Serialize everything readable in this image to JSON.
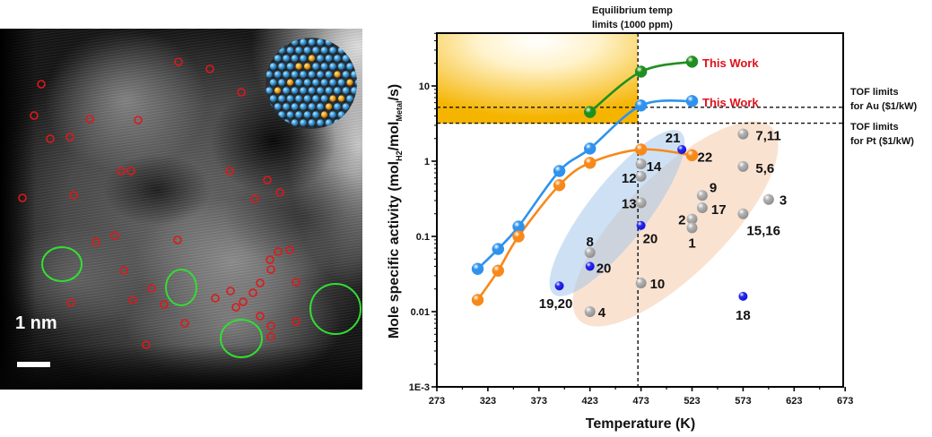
{
  "left_panel": {
    "scale_bar_label": "1 nm",
    "marker_colors": {
      "single_atom_circle": "#e01818",
      "cluster_ellipse": "#33dd33"
    },
    "model_colors": {
      "support": "#3aa0e0",
      "metal": "#f0a820",
      "carbon": "#222222"
    }
  },
  "chart_data": {
    "type": "scatter",
    "xlabel": "Temperature (K)",
    "ylabel_parts": [
      "Mole specific activity (mol",
      "H2",
      "/mol",
      "Metal",
      "/s)"
    ],
    "xlim": [
      273,
      673
    ],
    "ylim": [
      0.001,
      50
    ],
    "yscale": "log",
    "grid": false,
    "xticks": [
      "273",
      "323",
      "373",
      "423",
      "473",
      "523",
      "573",
      "623",
      "673"
    ],
    "yticks": [
      {
        "value": 0.001,
        "label": "1E-3"
      },
      {
        "value": 0.01,
        "label": "0.01"
      },
      {
        "value": 0.1,
        "label": "0.1"
      },
      {
        "value": 1,
        "label": "1"
      },
      {
        "value": 10,
        "label": "10"
      }
    ],
    "series": [
      {
        "name": "This Work",
        "color": "#2e92ee",
        "points": [
          [
            313,
            0.037
          ],
          [
            333,
            0.068
          ],
          [
            353,
            0.135
          ],
          [
            393,
            0.74
          ],
          [
            423,
            1.47
          ],
          [
            473,
            5.5
          ],
          [
            523,
            6.3
          ]
        ]
      },
      {
        "name": "This Work",
        "color": "#1f8f1f",
        "points": [
          [
            423,
            4.5
          ],
          [
            473,
            15.5
          ],
          [
            523,
            21
          ]
        ]
      },
      {
        "color": "#f7891a",
        "points": [
          [
            313,
            0.0143
          ],
          [
            333,
            0.035
          ],
          [
            353,
            0.1
          ],
          [
            393,
            0.48
          ],
          [
            423,
            0.95
          ],
          [
            473,
            1.43
          ],
          [
            523,
            1.2
          ]
        ]
      }
    ],
    "literature_points": [
      {
        "x": 573,
        "y": 2.3,
        "label": "7,11",
        "kind": "gray"
      },
      {
        "x": 573,
        "y": 0.85,
        "label": "5,6",
        "kind": "gray"
      },
      {
        "x": 598,
        "y": 0.31,
        "label": "3",
        "kind": "gray"
      },
      {
        "x": 533,
        "y": 0.35,
        "label": "9",
        "kind": "gray"
      },
      {
        "x": 533,
        "y": 0.24,
        "label": "17",
        "kind": "gray"
      },
      {
        "x": 523,
        "y": 0.17,
        "label": "2",
        "kind": "gray"
      },
      {
        "x": 523,
        "y": 0.13,
        "label": "1",
        "kind": "gray"
      },
      {
        "x": 573,
        "y": 0.2,
        "label": "15,16",
        "kind": "gray"
      },
      {
        "x": 473,
        "y": 0.92,
        "label": "14",
        "kind": "gray"
      },
      {
        "x": 473,
        "y": 0.63,
        "label": "12",
        "kind": "gray"
      },
      {
        "x": 473,
        "y": 0.28,
        "label": "13",
        "kind": "gray"
      },
      {
        "x": 473,
        "y": 0.024,
        "label": "10",
        "kind": "gray"
      },
      {
        "x": 423,
        "y": 0.061,
        "label": "8",
        "kind": "gray"
      },
      {
        "x": 423,
        "y": 0.01,
        "label": "4",
        "kind": "gray"
      },
      {
        "x": 513,
        "y": 1.43,
        "label": "21",
        "kind": "blue"
      },
      {
        "x": 473,
        "y": 0.14,
        "label": "20",
        "kind": "blue"
      },
      {
        "x": 423,
        "y": 0.04,
        "label": "20",
        "kind": "blue"
      },
      {
        "x": 393,
        "y": 0.022,
        "label": "19,20",
        "kind": "blue"
      },
      {
        "x": 573,
        "y": 0.016,
        "label": "18",
        "kind": "blue"
      }
    ],
    "annotations": [
      {
        "text": "22",
        "x": 523,
        "y": 1.2
      }
    ],
    "reference_lines": {
      "equilibrium": {
        "x": 470,
        "label_lines": [
          "Equilibrium temp",
          "limits (1000 ppm)"
        ]
      },
      "tof_au": {
        "y": 5.2,
        "label_lines": [
          "TOF limits",
          "for Au ($1/kW)"
        ]
      },
      "tof_pt": {
        "y": 3.2,
        "label_lines": [
          "TOF limits",
          "for Pt ($1/kW)"
        ]
      }
    },
    "colors": {
      "target_region": "#f5b400",
      "gray_points": "#b5b5b5",
      "blue_points": "#1010d8",
      "this_work_label": "#e0101a",
      "region_blue": "#9ec4ea",
      "region_peach": "#f6cfb2"
    }
  }
}
